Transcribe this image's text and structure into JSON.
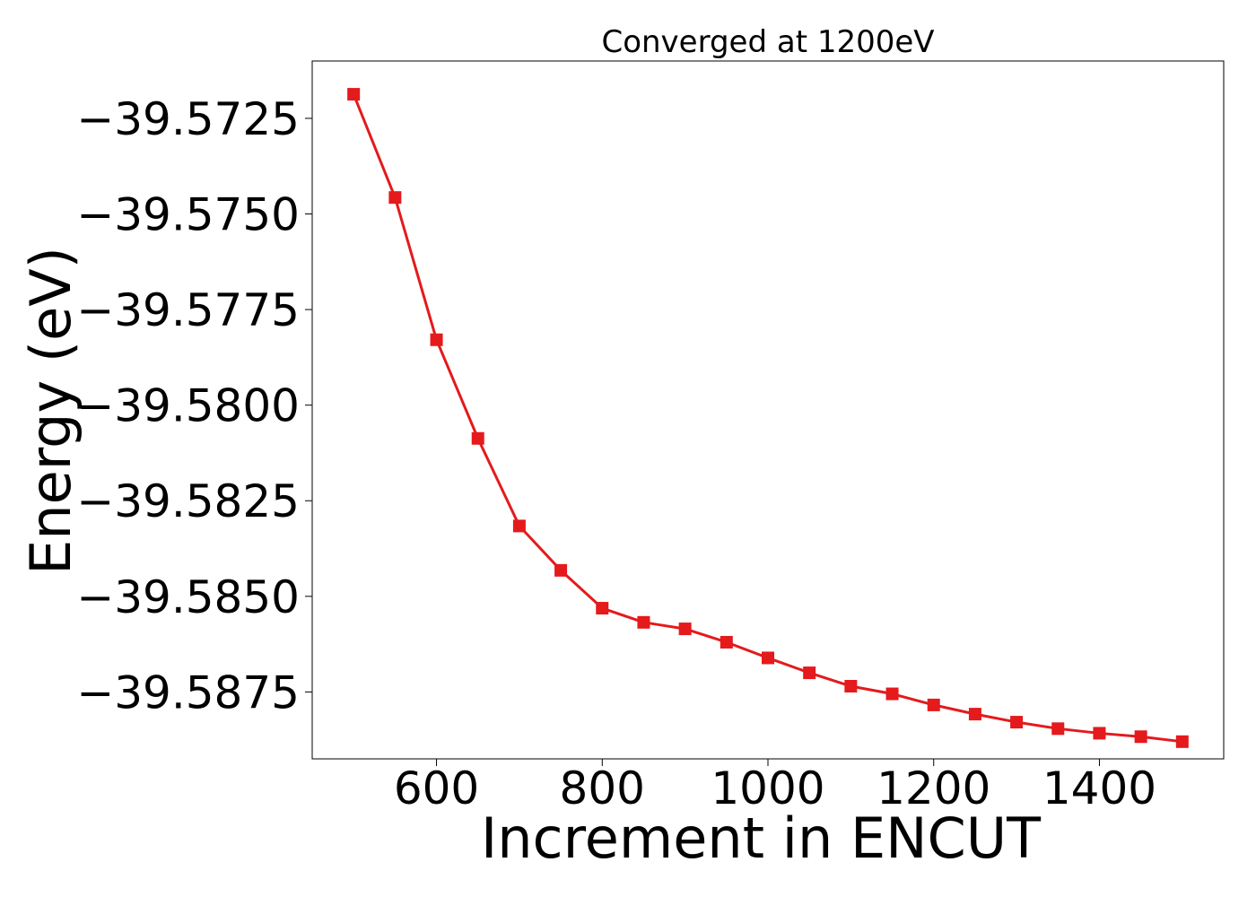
{
  "chart_data": {
    "type": "line",
    "title": "Converged at 1200eV",
    "xlabel": "Increment in ENCUT",
    "ylabel": "Energy (eV)",
    "xlim": [
      450,
      1550
    ],
    "ylim": [
      -39.58925,
      -39.571
    ],
    "grid": false,
    "legend": "none",
    "xticks": [
      600,
      800,
      1000,
      1200,
      1400
    ],
    "xtick_labels": [
      "600",
      "800",
      "1000",
      "1200",
      "1400"
    ],
    "yticks": [
      -39.5725,
      -39.575,
      -39.5775,
      -39.58,
      -39.5825,
      -39.585,
      -39.5875
    ],
    "ytick_labels": [
      "−39.5725",
      "−39.5750",
      "−39.5775",
      "−39.5800",
      "−39.5825",
      "−39.5850",
      "−39.5875"
    ],
    "series": [
      {
        "color": "#e41a1c",
        "marker": "square",
        "x": [
          500,
          550,
          600,
          650,
          700,
          750,
          800,
          850,
          900,
          950,
          1000,
          1050,
          1100,
          1150,
          1200,
          1250,
          1300,
          1350,
          1400,
          1450,
          1500
        ],
        "y": [
          -39.57187,
          -39.57457,
          -39.57829,
          -39.58087,
          -39.58316,
          -39.58432,
          -39.58531,
          -39.58568,
          -39.58585,
          -39.5862,
          -39.58661,
          -39.587,
          -39.58735,
          -39.58755,
          -39.58784,
          -39.58808,
          -39.58829,
          -39.58846,
          -39.58858,
          -39.58867,
          -39.5888
        ]
      }
    ]
  }
}
